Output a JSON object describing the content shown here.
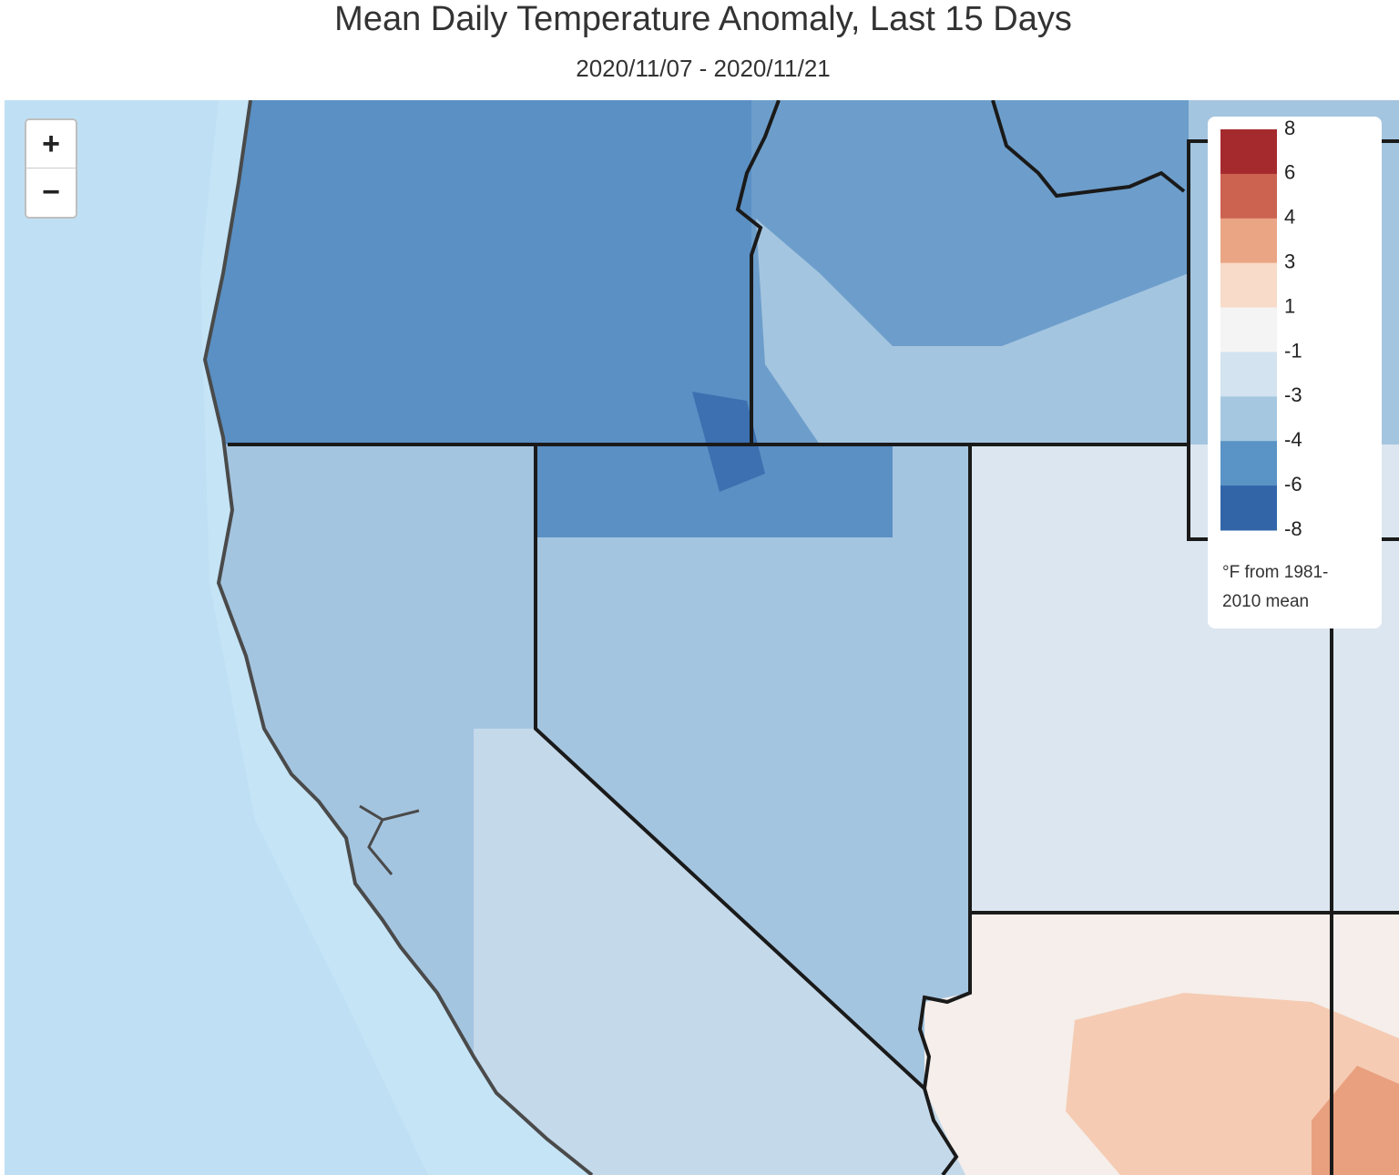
{
  "header": {
    "title": "Mean Daily Temperature Anomaly, Last 15 Days",
    "subtitle": "2020/11/07 - 2020/11/21"
  },
  "zoom": {
    "in": "+",
    "out": "−"
  },
  "legend": {
    "ticks": [
      8,
      6,
      4,
      3,
      1,
      -1,
      -3,
      -4,
      -6,
      -8
    ],
    "colors": [
      "#a52a2e",
      "#cb6350",
      "#eaa584",
      "#f8dbc9",
      "#f4f4f4",
      "#d3e3ef",
      "#a5c8e0",
      "#5a93c5",
      "#3265a8"
    ],
    "caption": "°F from 1981-2010 mean"
  }
}
